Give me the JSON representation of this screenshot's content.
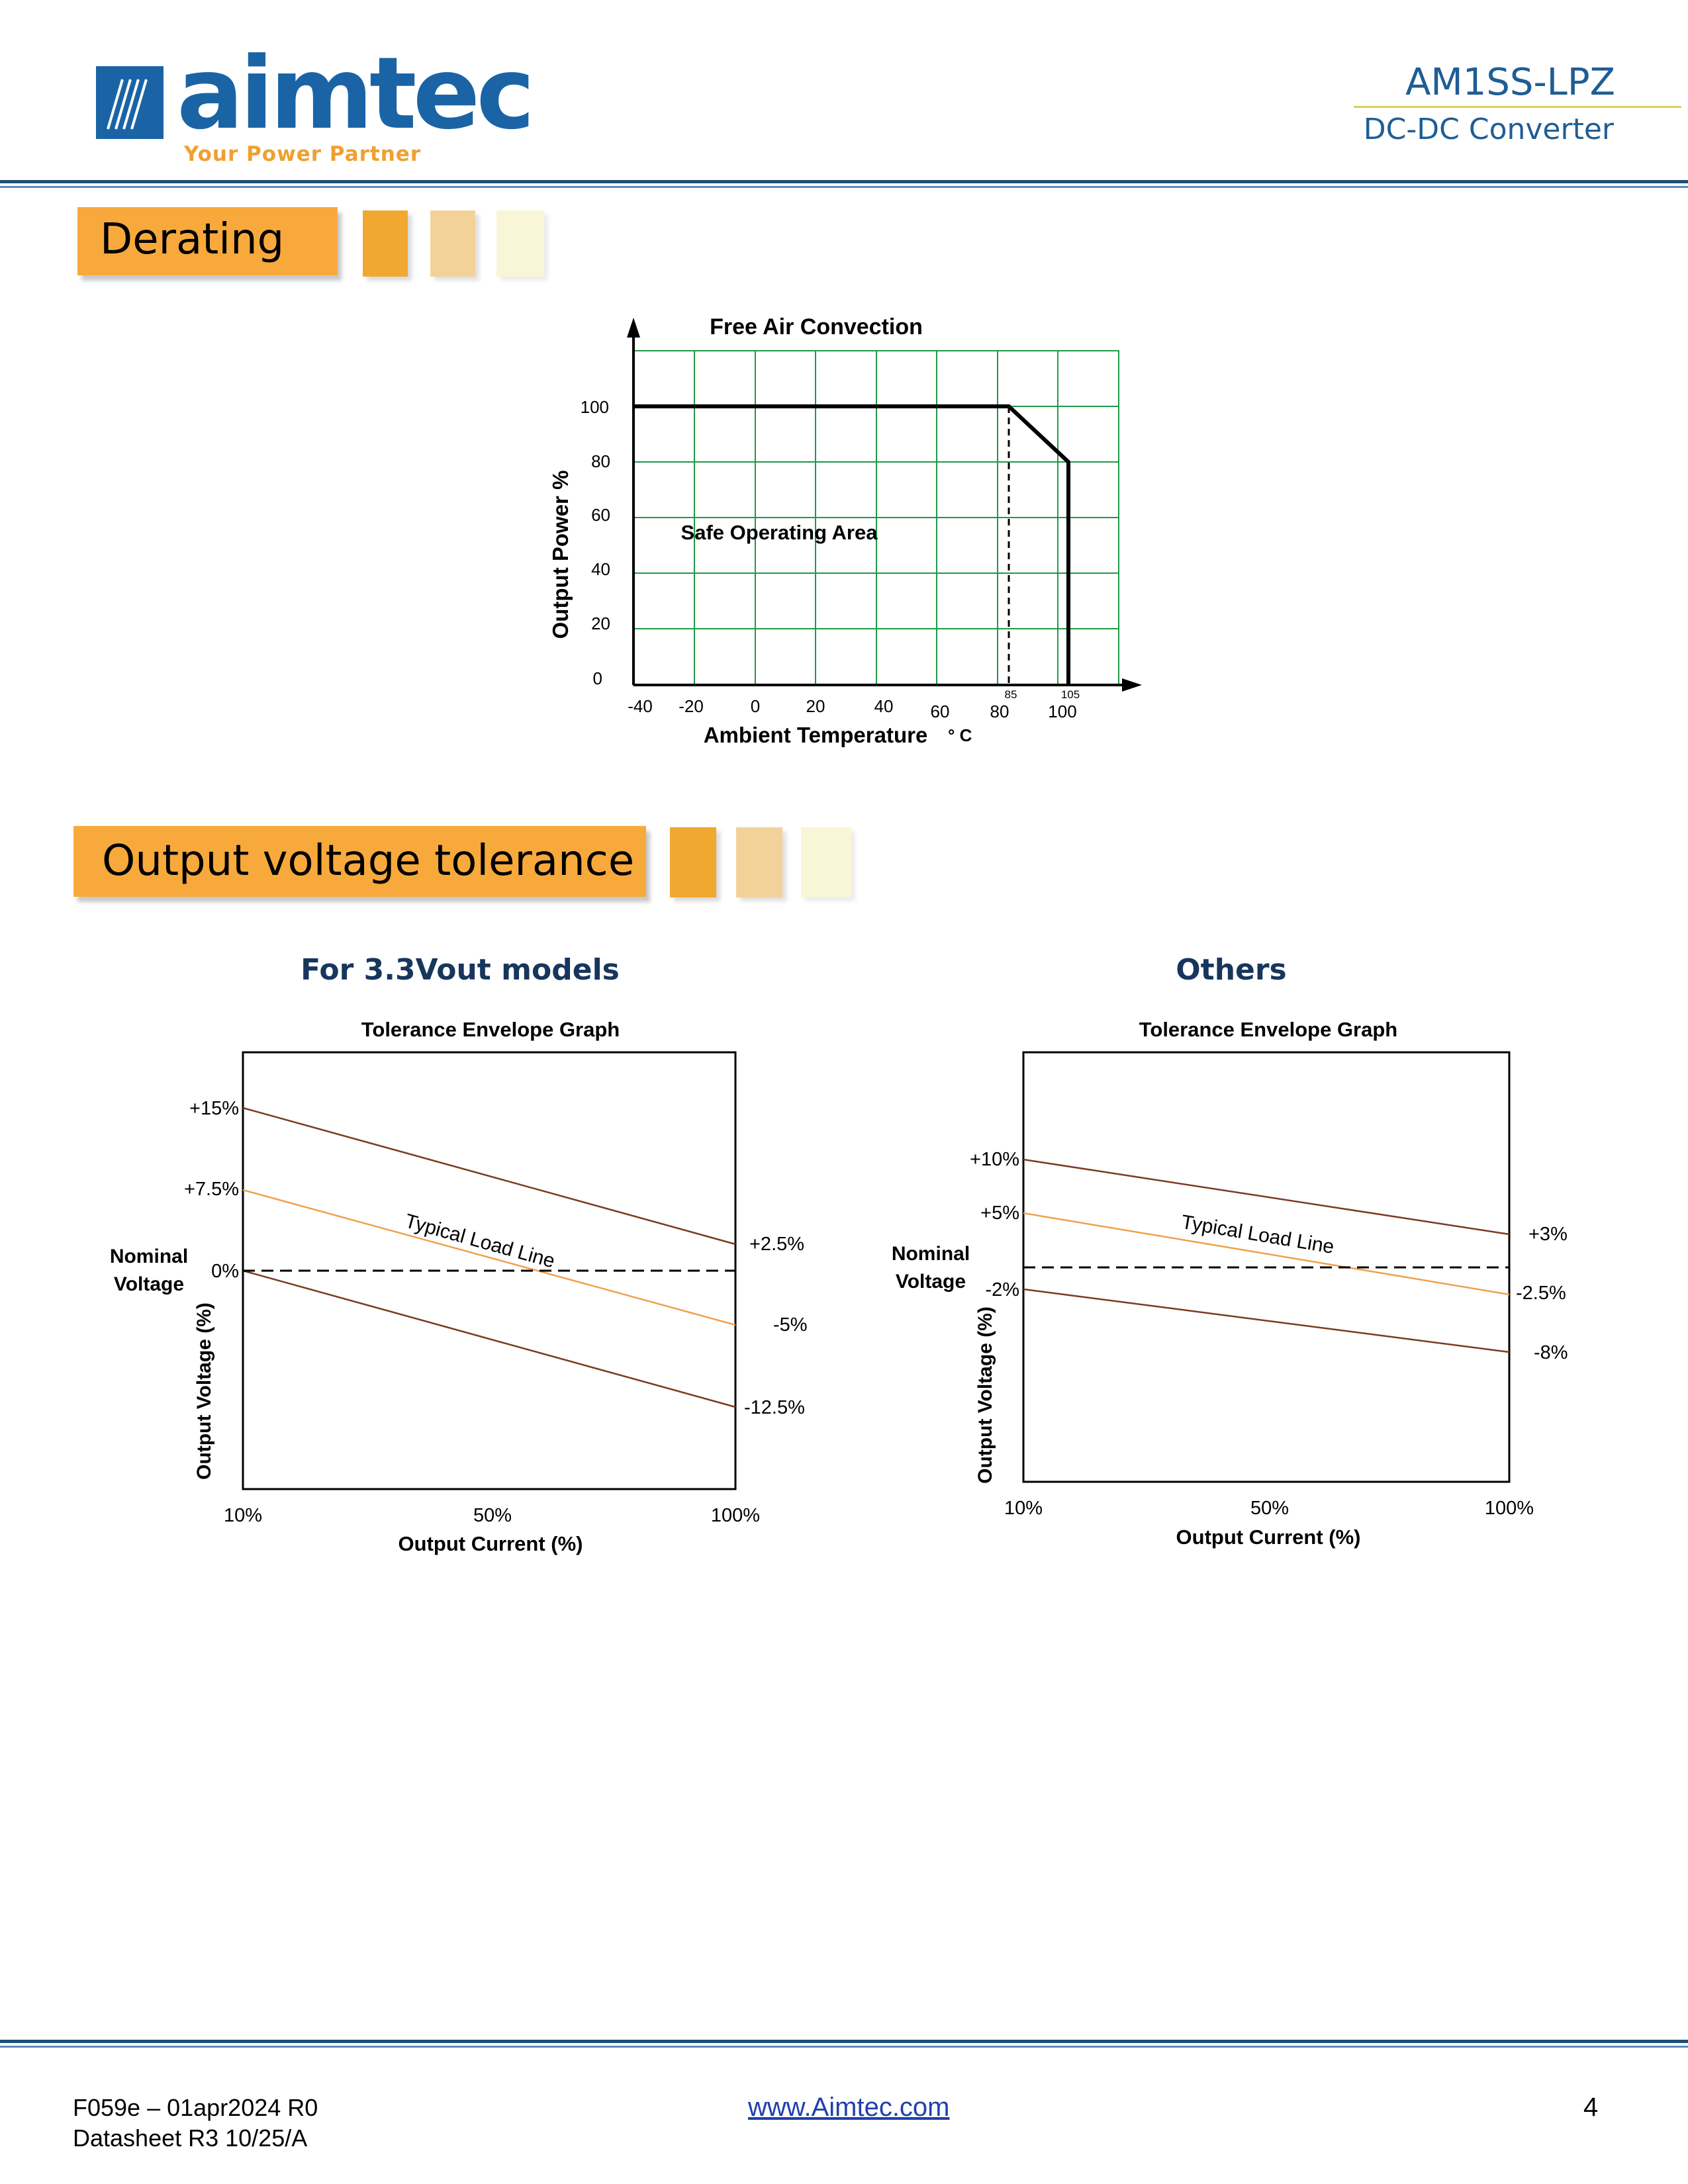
{
  "header": {
    "logo": "aimtec",
    "tagline": "Your Power Partner",
    "model": "AM1SS-LPZ",
    "product_type": "DC-DC Converter"
  },
  "sections": {
    "derating": "Derating",
    "tolerance": "Output voltage tolerance"
  },
  "derating_chart": {
    "title": "Free Air Convection",
    "ylabel": "Output Power %",
    "xlabel": "Ambient Temperature",
    "xunit": "° C",
    "area_label": "Safe Operating Area",
    "yticks": [
      "100",
      "80",
      "60",
      "40",
      "20",
      "0"
    ],
    "xticks": [
      "-40",
      "-20",
      "0",
      "20",
      "40",
      "60",
      "80",
      "100"
    ],
    "marker_labels": [
      "85",
      "105"
    ]
  },
  "tolerance_charts": [
    {
      "heading": "For 3.3Vout models",
      "title": "Tolerance Envelope Graph",
      "ylabel": "Output Voltage (%)",
      "xlabel": "Output Current (%)",
      "nominal_line1": "Nominal",
      "nominal_line2": "Voltage",
      "line_label": "Typical Load Line",
      "left_labels": [
        "+15%",
        "+7.5%",
        "0%"
      ],
      "right_labels": [
        "+2.5%",
        "-5%",
        "-12.5%"
      ],
      "xticks": [
        "10%",
        "50%",
        "100%"
      ]
    },
    {
      "heading": "Others",
      "title": "Tolerance Envelope Graph",
      "ylabel": "Output Voltage (%)",
      "xlabel": "Output Current (%)",
      "nominal_line1": "Nominal",
      "nominal_line2": "Voltage",
      "line_label": "Typical Load Line",
      "left_labels": [
        "+10%",
        "+5%",
        "-2%"
      ],
      "right_labels": [
        "+3%",
        "-2.5%",
        "-8%"
      ],
      "xticks": [
        "10%",
        "50%",
        "100%"
      ]
    }
  ],
  "chart_data": [
    {
      "type": "line",
      "title": "Free Air Convection",
      "xlabel": "Ambient Temperature ° C",
      "ylabel": "Output Power %",
      "xlim": [
        -40,
        120
      ],
      "ylim": [
        0,
        120
      ],
      "series": [
        {
          "name": "Derating curve",
          "x": [
            -40,
            85,
            105,
            105
          ],
          "y": [
            100,
            100,
            80,
            0
          ]
        }
      ],
      "annotations": [
        "Safe Operating Area",
        "85",
        "105"
      ]
    },
    {
      "type": "line",
      "title": "Tolerance Envelope Graph",
      "xlabel": "Output Current (%)",
      "ylabel": "Output Voltage (%)",
      "categories": [
        "10%",
        "100%"
      ],
      "series": [
        {
          "name": "Upper limit",
          "values": [
            15,
            2.5
          ]
        },
        {
          "name": "Typical Load Line",
          "values": [
            7.5,
            -5
          ]
        },
        {
          "name": "Lower limit",
          "values": [
            0,
            -12.5
          ]
        }
      ]
    },
    {
      "type": "line",
      "title": "Tolerance Envelope Graph",
      "xlabel": "Output Current (%)",
      "ylabel": "Output Voltage (%)",
      "categories": [
        "10%",
        "100%"
      ],
      "series": [
        {
          "name": "Upper limit",
          "values": [
            10,
            3
          ]
        },
        {
          "name": "Typical Load Line",
          "values": [
            5,
            -2.5
          ]
        },
        {
          "name": "Lower limit",
          "values": [
            -2,
            -8
          ]
        }
      ]
    }
  ],
  "footer": {
    "form_code": "F059e – 01apr2024 R0",
    "datasheet_rev": "Datasheet R3 10/25/A",
    "website": "www.Aimtec.com",
    "page_number": "4"
  }
}
